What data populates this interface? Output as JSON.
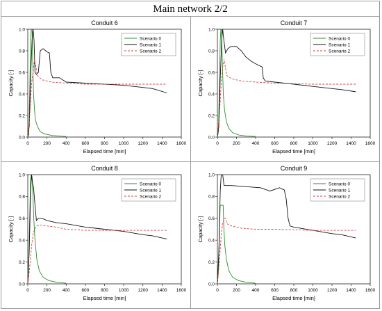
{
  "figure": {
    "title": "Main network 2/2"
  },
  "colors": {
    "scenario0": "#2e8b2e",
    "scenario1": "#111111",
    "scenario2": "#d04040",
    "axis": "#222222"
  },
  "chart_data": [
    {
      "type": "line",
      "title": "Conduit 6",
      "xlabel": "Elapsed time [min]",
      "ylabel": "Capacity [-]",
      "xlim": [
        0,
        1600
      ],
      "ylim": [
        0,
        1.0
      ],
      "xticks": [
        "0",
        "200",
        "400",
        "600",
        "800",
        "1000",
        "1200",
        "1400",
        "1600"
      ],
      "yticks": [
        "0.0",
        "0.2",
        "0.4",
        "0.6",
        "0.8",
        "1.0"
      ],
      "legend": "top-right",
      "series": [
        {
          "name": "Scenario 0",
          "style": "solid",
          "color": "#2e8b2e",
          "points": [
            [
              0,
              0
            ],
            [
              10,
              0.02
            ],
            [
              22,
              0.5
            ],
            [
              30,
              0.9
            ],
            [
              36,
              1.0
            ],
            [
              44,
              1.0
            ],
            [
              50,
              0.75
            ],
            [
              60,
              0.4
            ],
            [
              70,
              0.25
            ],
            [
              80,
              0.16
            ],
            [
              100,
              0.1
            ],
            [
              130,
              0.05
            ],
            [
              170,
              0.03
            ],
            [
              250,
              0.015
            ],
            [
              400,
              0.005
            ]
          ]
        },
        {
          "name": "Scenario 1",
          "style": "solid",
          "color": "#111111",
          "points": [
            [
              0,
              0
            ],
            [
              15,
              0.1
            ],
            [
              30,
              0.55
            ],
            [
              45,
              0.9
            ],
            [
              55,
              1.0
            ],
            [
              65,
              0.9
            ],
            [
              75,
              0.6
            ],
            [
              90,
              0.58
            ],
            [
              110,
              0.6
            ],
            [
              130,
              0.8
            ],
            [
              160,
              0.82
            ],
            [
              200,
              0.79
            ],
            [
              225,
              0.78
            ],
            [
              240,
              0.6
            ],
            [
              260,
              0.55
            ],
            [
              330,
              0.55
            ],
            [
              400,
              0.51
            ],
            [
              600,
              0.5
            ],
            [
              800,
              0.49
            ],
            [
              1000,
              0.48
            ],
            [
              1200,
              0.46
            ],
            [
              1300,
              0.45
            ],
            [
              1450,
              0.41
            ]
          ]
        },
        {
          "name": "Scenario 2",
          "style": "dashed",
          "color": "#d04040",
          "points": [
            [
              0,
              0
            ],
            [
              20,
              0.2
            ],
            [
              40,
              0.5
            ],
            [
              55,
              0.6
            ],
            [
              70,
              0.72
            ],
            [
              85,
              0.65
            ],
            [
              100,
              0.57
            ],
            [
              150,
              0.53
            ],
            [
              250,
              0.51
            ],
            [
              400,
              0.5
            ],
            [
              600,
              0.49
            ],
            [
              1000,
              0.49
            ],
            [
              1450,
              0.49
            ]
          ]
        }
      ]
    },
    {
      "type": "line",
      "title": "Conduit 7",
      "xlabel": "Elapsed time [min]",
      "ylabel": "Capacity [-]",
      "xlim": [
        0,
        1600
      ],
      "ylim": [
        0,
        1.0
      ],
      "xticks": [
        "0",
        "200",
        "400",
        "600",
        "800",
        "1000",
        "1200",
        "1400",
        "1600"
      ],
      "yticks": [
        "0.0",
        "0.2",
        "0.4",
        "0.6",
        "0.8",
        "1.0"
      ],
      "legend": "top-right",
      "series": [
        {
          "name": "Scenario 0",
          "style": "solid",
          "color": "#2e8b2e",
          "points": [
            [
              0,
              0
            ],
            [
              10,
              0.05
            ],
            [
              22,
              0.5
            ],
            [
              30,
              0.9
            ],
            [
              36,
              1.0
            ],
            [
              44,
              1.0
            ],
            [
              52,
              0.7
            ],
            [
              62,
              0.4
            ],
            [
              75,
              0.25
            ],
            [
              95,
              0.14
            ],
            [
              120,
              0.08
            ],
            [
              160,
              0.04
            ],
            [
              220,
              0.02
            ],
            [
              300,
              0.01
            ],
            [
              400,
              0.005
            ]
          ]
        },
        {
          "name": "Scenario 1",
          "style": "solid",
          "color": "#111111",
          "points": [
            [
              0,
              0
            ],
            [
              15,
              0.1
            ],
            [
              30,
              0.55
            ],
            [
              45,
              0.9
            ],
            [
              55,
              1.0
            ],
            [
              65,
              0.92
            ],
            [
              85,
              0.78
            ],
            [
              110,
              0.82
            ],
            [
              140,
              0.84
            ],
            [
              200,
              0.84
            ],
            [
              250,
              0.8
            ],
            [
              300,
              0.74
            ],
            [
              360,
              0.7
            ],
            [
              420,
              0.67
            ],
            [
              470,
              0.65
            ],
            [
              480,
              0.55
            ],
            [
              500,
              0.52
            ],
            [
              600,
              0.51
            ],
            [
              800,
              0.49
            ],
            [
              1000,
              0.47
            ],
            [
              1200,
              0.45
            ],
            [
              1300,
              0.44
            ],
            [
              1450,
              0.42
            ]
          ]
        },
        {
          "name": "Scenario 2",
          "style": "dashed",
          "color": "#d04040",
          "points": [
            [
              0,
              0
            ],
            [
              20,
              0.2
            ],
            [
              40,
              0.5
            ],
            [
              55,
              0.65
            ],
            [
              70,
              0.72
            ],
            [
              85,
              0.64
            ],
            [
              100,
              0.57
            ],
            [
              150,
              0.54
            ],
            [
              250,
              0.52
            ],
            [
              400,
              0.51
            ],
            [
              600,
              0.5
            ],
            [
              1000,
              0.49
            ],
            [
              1450,
              0.49
            ]
          ]
        }
      ]
    },
    {
      "type": "line",
      "title": "Conduit 8",
      "xlabel": "Elapsed time [min]",
      "ylabel": "Capacity [-]",
      "xlim": [
        0,
        1600
      ],
      "ylim": [
        0,
        1.0
      ],
      "xticks": [
        "0",
        "200",
        "400",
        "600",
        "800",
        "1000",
        "1200",
        "1400",
        "1600"
      ],
      "yticks": [
        "0.0",
        "0.2",
        "0.4",
        "0.6",
        "0.8",
        "1.0"
      ],
      "legend": "top-right",
      "series": [
        {
          "name": "Scenario 0",
          "style": "solid",
          "color": "#2e8b2e",
          "points": [
            [
              0,
              0
            ],
            [
              10,
              0.2
            ],
            [
              22,
              0.7
            ],
            [
              30,
              0.95
            ],
            [
              36,
              1.0
            ],
            [
              44,
              0.98
            ],
            [
              52,
              0.85
            ],
            [
              62,
              0.6
            ],
            [
              75,
              0.4
            ],
            [
              95,
              0.22
            ],
            [
              120,
              0.12
            ],
            [
              160,
              0.06
            ],
            [
              220,
              0.03
            ],
            [
              300,
              0.015
            ],
            [
              400,
              0.005
            ]
          ]
        },
        {
          "name": "Scenario 1",
          "style": "solid",
          "color": "#111111",
          "points": [
            [
              0,
              0
            ],
            [
              15,
              0.3
            ],
            [
              30,
              0.85
            ],
            [
              40,
              1.0
            ],
            [
              50,
              0.92
            ],
            [
              60,
              0.88
            ],
            [
              75,
              0.72
            ],
            [
              90,
              0.58
            ],
            [
              110,
              0.6
            ],
            [
              150,
              0.6
            ],
            [
              200,
              0.58
            ],
            [
              300,
              0.56
            ],
            [
              400,
              0.55
            ],
            [
              600,
              0.52
            ],
            [
              800,
              0.5
            ],
            [
              1000,
              0.48
            ],
            [
              1200,
              0.45
            ],
            [
              1300,
              0.44
            ],
            [
              1450,
              0.41
            ]
          ]
        },
        {
          "name": "Scenario 2",
          "style": "dashed",
          "color": "#d04040",
          "points": [
            [
              0,
              0
            ],
            [
              20,
              0.15
            ],
            [
              40,
              0.35
            ],
            [
              55,
              0.45
            ],
            [
              70,
              0.5
            ],
            [
              90,
              0.53
            ],
            [
              120,
              0.54
            ],
            [
              200,
              0.53
            ],
            [
              300,
              0.52
            ],
            [
              400,
              0.5
            ],
            [
              600,
              0.49
            ],
            [
              1000,
              0.49
            ],
            [
              1450,
              0.49
            ]
          ]
        }
      ]
    },
    {
      "type": "line",
      "title": "Conduit 9",
      "xlabel": "Elapsed time [min]",
      "ylabel": "Capacity [-]",
      "xlim": [
        0,
        1600
      ],
      "ylim": [
        0,
        1.0
      ],
      "xticks": [
        "0",
        "200",
        "400",
        "600",
        "800",
        "1000",
        "1200",
        "1400",
        "1600"
      ],
      "yticks": [
        "0.0",
        "0.2",
        "0.4",
        "0.6",
        "0.8",
        "1.0"
      ],
      "legend": "top-right",
      "series": [
        {
          "name": "Scenario 0",
          "style": "solid",
          "color": "#2e8b2e",
          "points": [
            [
              0,
              0
            ],
            [
              10,
              0.1
            ],
            [
              22,
              0.5
            ],
            [
              30,
              0.72
            ],
            [
              60,
              0.72
            ],
            [
              68,
              0.5
            ],
            [
              78,
              0.35
            ],
            [
              95,
              0.22
            ],
            [
              120,
              0.12
            ],
            [
              160,
              0.06
            ],
            [
              220,
              0.03
            ],
            [
              300,
              0.015
            ],
            [
              400,
              0.005
            ]
          ]
        },
        {
          "name": "Scenario 1",
          "style": "solid",
          "color": "#111111",
          "points": [
            [
              0,
              0
            ],
            [
              15,
              0.3
            ],
            [
              30,
              0.85
            ],
            [
              40,
              1.0
            ],
            [
              55,
              1.0
            ],
            [
              70,
              0.9
            ],
            [
              150,
              0.9
            ],
            [
              300,
              0.89
            ],
            [
              450,
              0.88
            ],
            [
              550,
              0.85
            ],
            [
              650,
              0.88
            ],
            [
              700,
              0.86
            ],
            [
              720,
              0.78
            ],
            [
              740,
              0.6
            ],
            [
              760,
              0.53
            ],
            [
              800,
              0.52
            ],
            [
              1000,
              0.49
            ],
            [
              1200,
              0.46
            ],
            [
              1300,
              0.45
            ],
            [
              1450,
              0.42
            ]
          ]
        },
        {
          "name": "Scenario 2",
          "style": "dashed",
          "color": "#d04040",
          "points": [
            [
              0,
              0
            ],
            [
              20,
              0.2
            ],
            [
              40,
              0.45
            ],
            [
              55,
              0.55
            ],
            [
              70,
              0.6
            ],
            [
              85,
              0.6
            ],
            [
              100,
              0.55
            ],
            [
              150,
              0.53
            ],
            [
              250,
              0.51
            ],
            [
              400,
              0.5
            ],
            [
              600,
              0.5
            ],
            [
              1000,
              0.49
            ],
            [
              1450,
              0.49
            ]
          ]
        }
      ]
    }
  ]
}
